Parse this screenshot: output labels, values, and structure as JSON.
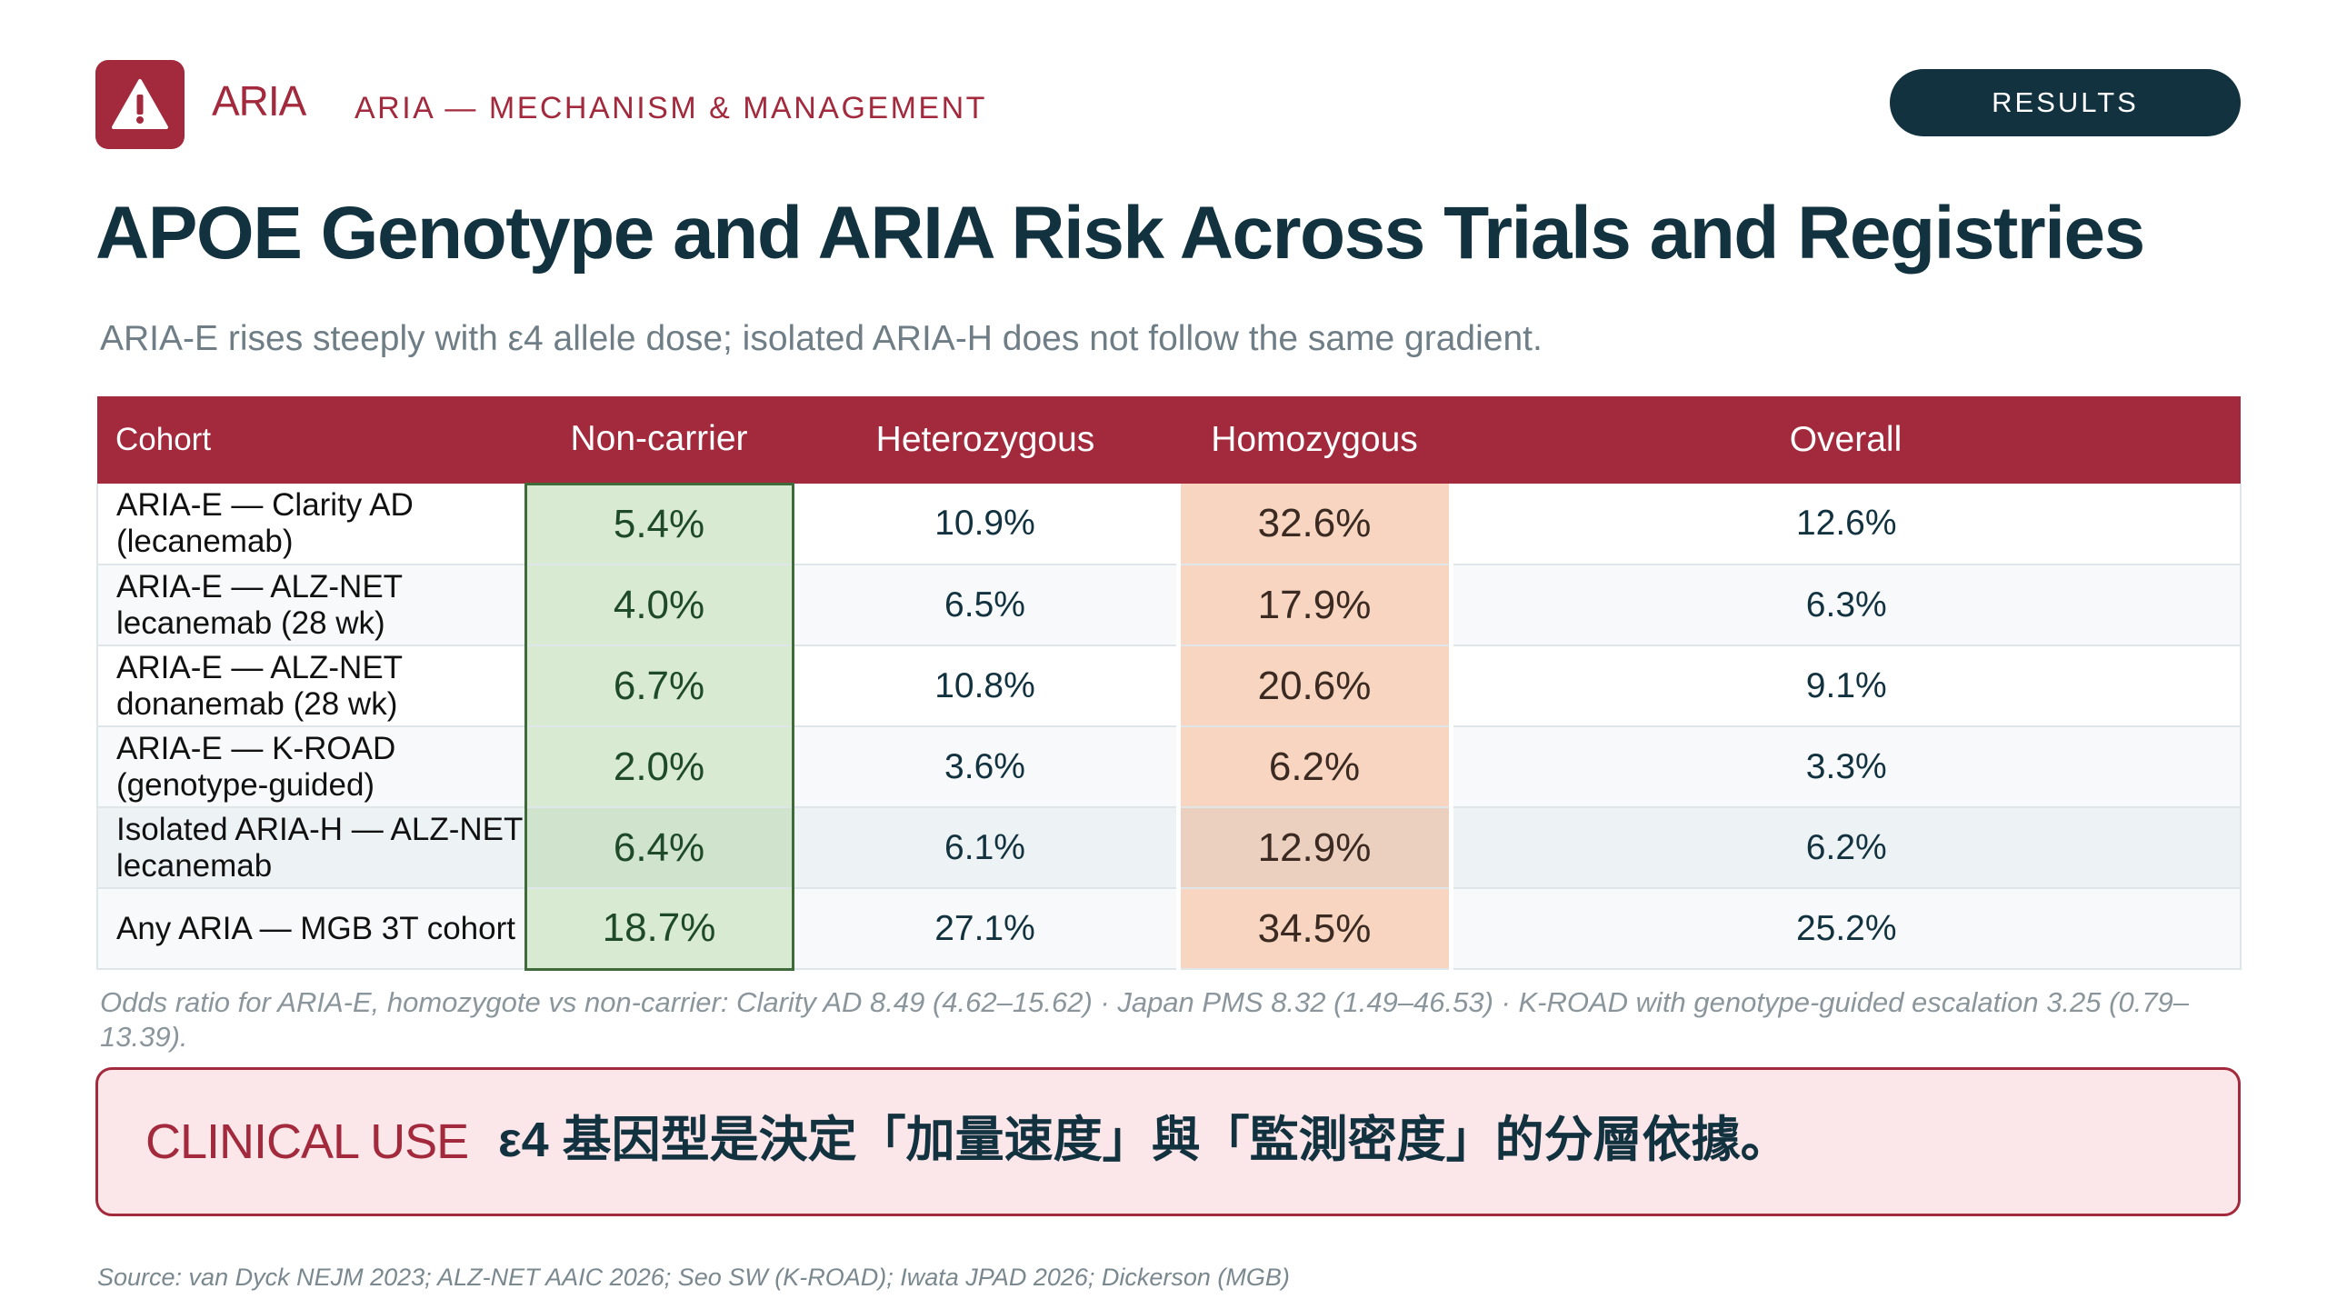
{
  "header": {
    "brand": "ARIA",
    "section": "ARIA — MECHANISM & MANAGEMENT",
    "badge": "RESULTS",
    "logo_icon": "warning-triangle-icon",
    "accent_color": "#a3293c",
    "dark_color": "#12323f"
  },
  "title": "APOE Genotype and ARIA Risk Across Trials and Registries",
  "subtitle": "ARIA-E rises steeply with ε4 allele dose; isolated ARIA-H does not follow the same gradient.",
  "table": {
    "columns": [
      "Cohort",
      "Non-carrier",
      "Heterozygous",
      "Homozygous",
      "Overall"
    ],
    "rows": [
      {
        "cohort": "ARIA-E — Clarity AD (lecanemab)",
        "non_carrier": "5.4%",
        "heterozygous": "10.9%",
        "homozygous": "32.6%",
        "overall": "12.6%"
      },
      {
        "cohort": "ARIA-E — ALZ-NET lecanemab (28 wk)",
        "non_carrier": "4.0%",
        "heterozygous": "6.5%",
        "homozygous": "17.9%",
        "overall": "6.3%"
      },
      {
        "cohort": "ARIA-E — ALZ-NET donanemab (28 wk)",
        "non_carrier": "6.7%",
        "heterozygous": "10.8%",
        "homozygous": "20.6%",
        "overall": "9.1%"
      },
      {
        "cohort": "ARIA-E — K-ROAD (genotype-guided)",
        "non_carrier": "2.0%",
        "heterozygous": "3.6%",
        "homozygous": "6.2%",
        "overall": "3.3%"
      },
      {
        "cohort": "Isolated ARIA-H — ALZ-NET lecanemab",
        "non_carrier": "6.4%",
        "heterozygous": "6.1%",
        "homozygous": "12.9%",
        "overall": "6.2%"
      },
      {
        "cohort": "Any ARIA — MGB 3T cohort",
        "non_carrier": "18.7%",
        "heterozygous": "27.1%",
        "homozygous": "34.5%",
        "overall": "25.2%"
      }
    ]
  },
  "footnote": "Odds ratio for ARIA-E, homozygote vs non-carrier: Clarity AD 8.49 (4.62–15.62) · Japan PMS 8.32 (1.49–46.53) · K-ROAD with genotype-guided escalation 3.25 (0.79–13.39).",
  "callout": {
    "label": "CLINICAL USE",
    "text": "ε4 基因型是決定「加量速度」與「監測密度」的分層依據。"
  },
  "source": "Source: van Dyck NEJM 2023; ALZ-NET AAIC 2026; Seo SW (K-ROAD); Iwata JPAD 2026; Dickerson (MGB)"
}
